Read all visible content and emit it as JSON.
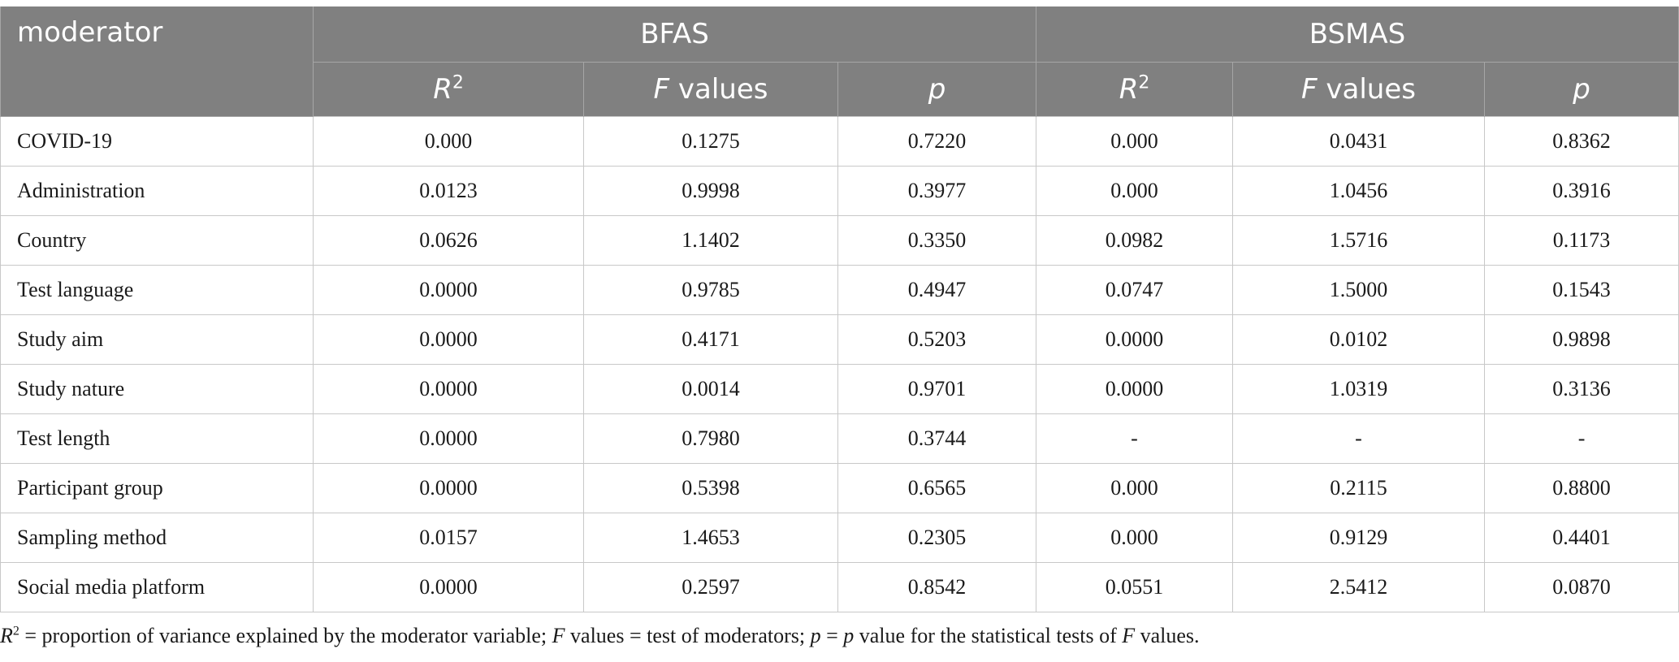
{
  "table": {
    "header": {
      "moderator": "moderator",
      "group1": "BFAS",
      "group2": "BSMAS",
      "r2_letter": "R",
      "r2_sup": "2",
      "f_letter": "F",
      "f_rest": " values",
      "p": "p"
    },
    "rows": [
      {
        "name": "COVID-19",
        "bfas_r2": "0.000",
        "bfas_f": "0.1275",
        "bfas_p": "0.7220",
        "bsmas_r2": "0.000",
        "bsmas_f": "0.0431",
        "bsmas_p": "0.8362"
      },
      {
        "name": "Administration",
        "bfas_r2": "0.0123",
        "bfas_f": "0.9998",
        "bfas_p": "0.3977",
        "bsmas_r2": "0.000",
        "bsmas_f": "1.0456",
        "bsmas_p": "0.3916"
      },
      {
        "name": "Country",
        "bfas_r2": "0.0626",
        "bfas_f": "1.1402",
        "bfas_p": "0.3350",
        "bsmas_r2": "0.0982",
        "bsmas_f": "1.5716",
        "bsmas_p": "0.1173"
      },
      {
        "name": "Test language",
        "bfas_r2": "0.0000",
        "bfas_f": "0.9785",
        "bfas_p": "0.4947",
        "bsmas_r2": "0.0747",
        "bsmas_f": "1.5000",
        "bsmas_p": "0.1543"
      },
      {
        "name": "Study aim",
        "bfas_r2": "0.0000",
        "bfas_f": "0.4171",
        "bfas_p": "0.5203",
        "bsmas_r2": "0.0000",
        "bsmas_f": "0.0102",
        "bsmas_p": "0.9898"
      },
      {
        "name": "Study nature",
        "bfas_r2": "0.0000",
        "bfas_f": "0.0014",
        "bfas_p": "0.9701",
        "bsmas_r2": "0.0000",
        "bsmas_f": "1.0319",
        "bsmas_p": "0.3136"
      },
      {
        "name": "Test length",
        "bfas_r2": "0.0000",
        "bfas_f": "0.7980",
        "bfas_p": "0.3744",
        "bsmas_r2": "-",
        "bsmas_f": "-",
        "bsmas_p": "-"
      },
      {
        "name": "Participant group",
        "bfas_r2": "0.0000",
        "bfas_f": "0.5398",
        "bfas_p": "0.6565",
        "bsmas_r2": "0.000",
        "bsmas_f": "0.2115",
        "bsmas_p": "0.8800"
      },
      {
        "name": "Sampling method",
        "bfas_r2": "0.0157",
        "bfas_f": "1.4653",
        "bfas_p": "0.2305",
        "bsmas_r2": "0.000",
        "bsmas_f": "0.9129",
        "bsmas_p": "0.4401"
      },
      {
        "name": "Social media platform",
        "bfas_r2": "0.0000",
        "bfas_f": "0.2597",
        "bfas_p": "0.8542",
        "bsmas_r2": "0.0551",
        "bsmas_f": "2.5412",
        "bsmas_p": "0.0870"
      }
    ]
  },
  "footnote": {
    "r": "R",
    "sup": "2",
    "t1": " = proportion of variance explained by the moderator variable; ",
    "f1": "F",
    "t2": " values = test of moderators; ",
    "p1": "p",
    "t3": " = ",
    "p2": "p",
    "t4": " value for the statistical tests of ",
    "f2": "F",
    "t5": " values."
  }
}
